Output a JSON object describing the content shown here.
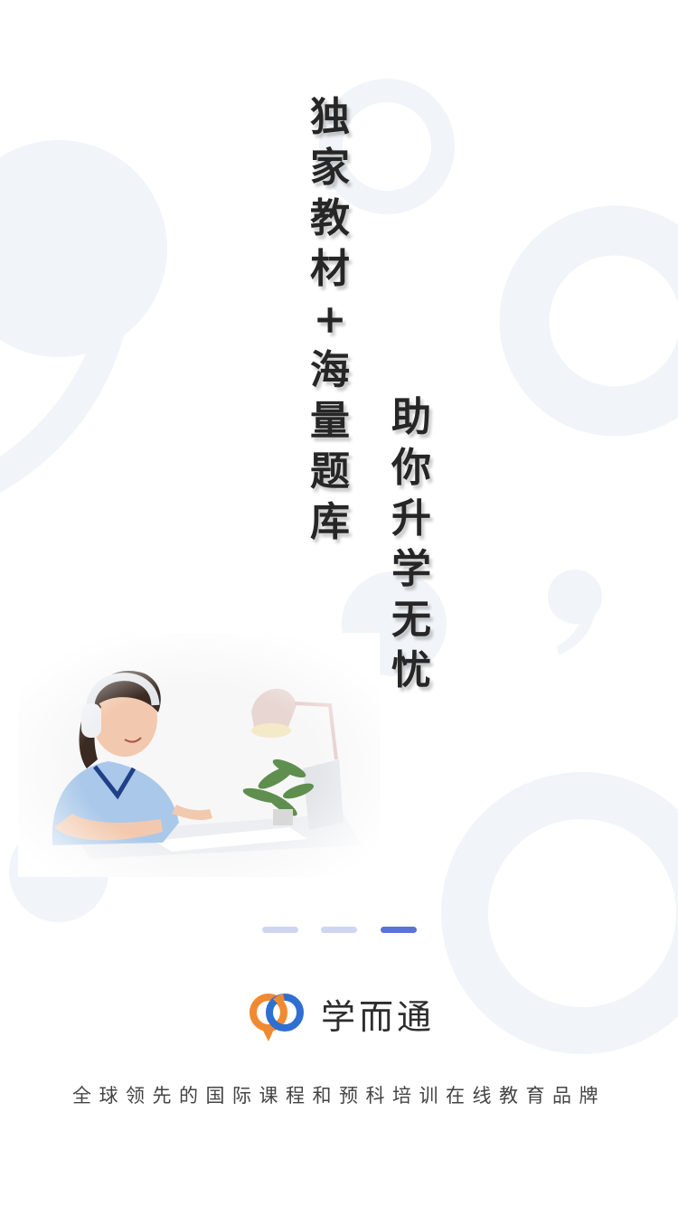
{
  "headline_column_1": [
    "独",
    "家",
    "教",
    "材",
    "+",
    "海",
    "量",
    "题",
    "库"
  ],
  "headline_column_2": [
    "助",
    "你",
    "升",
    "学",
    "无",
    "忧"
  ],
  "pager": {
    "total": 3,
    "active_index": 2
  },
  "brand": {
    "name": "学而通"
  },
  "slogan": "全球领先的国际课程和预科培训在线教育品牌",
  "colors": {
    "background": "#ffffff",
    "decor_shape": "#f1f4f8",
    "dot_inactive": "#cfd6f2",
    "dot_active": "#5b73d8",
    "logo_orange": "#f08a32",
    "logo_blue": "#2f6fd1",
    "text_dark": "#262626"
  }
}
